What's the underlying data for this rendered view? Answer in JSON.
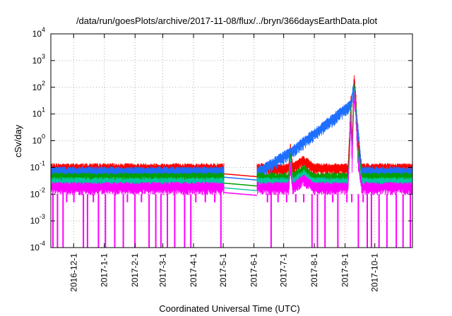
{
  "chart_data": {
    "type": "line",
    "title": "/data/run/goesPlots/archive/2017-11-08/flux/../bryn/366daysEarthData.plot",
    "xlabel": "Coordinated Universal Time (UTC)",
    "ylabel": "cSv/day",
    "y_scale": "log",
    "ylim": [
      0.0001,
      10000
    ],
    "y_ticks": [
      {
        "base": "10",
        "exp": "-4",
        "value": 0.0001
      },
      {
        "base": "10",
        "exp": "-3",
        "value": 0.001
      },
      {
        "base": "10",
        "exp": "-2",
        "value": 0.01
      },
      {
        "base": "10",
        "exp": "-1",
        "value": 0.1
      },
      {
        "base": "10",
        "exp": "0",
        "value": 1
      },
      {
        "base": "10",
        "exp": "1",
        "value": 10
      },
      {
        "base": "10",
        "exp": "2",
        "value": 100
      },
      {
        "base": "10",
        "exp": "3",
        "value": 1000
      },
      {
        "base": "10",
        "exp": "4",
        "value": 10000
      }
    ],
    "xlim": [
      "2016-11-08",
      "2017-11-08"
    ],
    "x_ticks": [
      "2016-12-1",
      "2017-1-1",
      "2017-2-1",
      "2017-3-1",
      "2017-4-1",
      "2017-5-1",
      "2017-6-1",
      "2017-7-1",
      "2017-8-1",
      "2017-9-1",
      "2017-10-1"
    ],
    "grid": true,
    "data_gap": [
      "2017-5-2",
      "2017-6-4"
    ],
    "series": [
      {
        "color": "#ff0000",
        "baseline": 0.1,
        "points": [
          [
            "2016-11-08",
            0.1
          ],
          [
            "2017-05-01",
            0.1
          ],
          [
            "2017-06-05",
            0.1
          ],
          [
            "2017-07-06",
            0.1
          ],
          [
            "2017-07-08",
            0.7
          ],
          [
            "2017-07-10",
            0.1
          ],
          [
            "2017-07-21",
            0.2
          ],
          [
            "2017-08-01",
            0.1
          ],
          [
            "2017-09-04",
            0.1
          ],
          [
            "2017-09-05",
            0.6
          ],
          [
            "2017-09-07",
            40
          ],
          [
            "2017-09-08",
            0.6
          ],
          [
            "2017-09-10",
            300
          ],
          [
            "2017-09-12",
            40
          ],
          [
            "2017-09-14",
            1
          ],
          [
            "2017-09-18",
            0.1
          ],
          [
            "2017-11-08",
            0.1
          ]
        ]
      },
      {
        "color": "#1e6fff",
        "baseline": 0.075,
        "points": [
          [
            "2016-11-08",
            0.075
          ],
          [
            "2017-05-01",
            0.075
          ],
          [
            "2017-06-05",
            0.075
          ],
          [
            "2017-07-08",
            0.4
          ],
          [
            "2017-09-07",
            25
          ],
          [
            "2017-09-10",
            150
          ],
          [
            "2017-09-12",
            20
          ],
          [
            "2017-09-18",
            0.075
          ],
          [
            "2017-11-08",
            0.075
          ]
        ]
      },
      {
        "color": "#00a000",
        "baseline": 0.045,
        "points": []
      },
      {
        "color": "#00c8a0",
        "baseline": 0.03,
        "points": []
      },
      {
        "color": "#ff00ff",
        "baseline": 0.02,
        "points": []
      }
    ]
  }
}
